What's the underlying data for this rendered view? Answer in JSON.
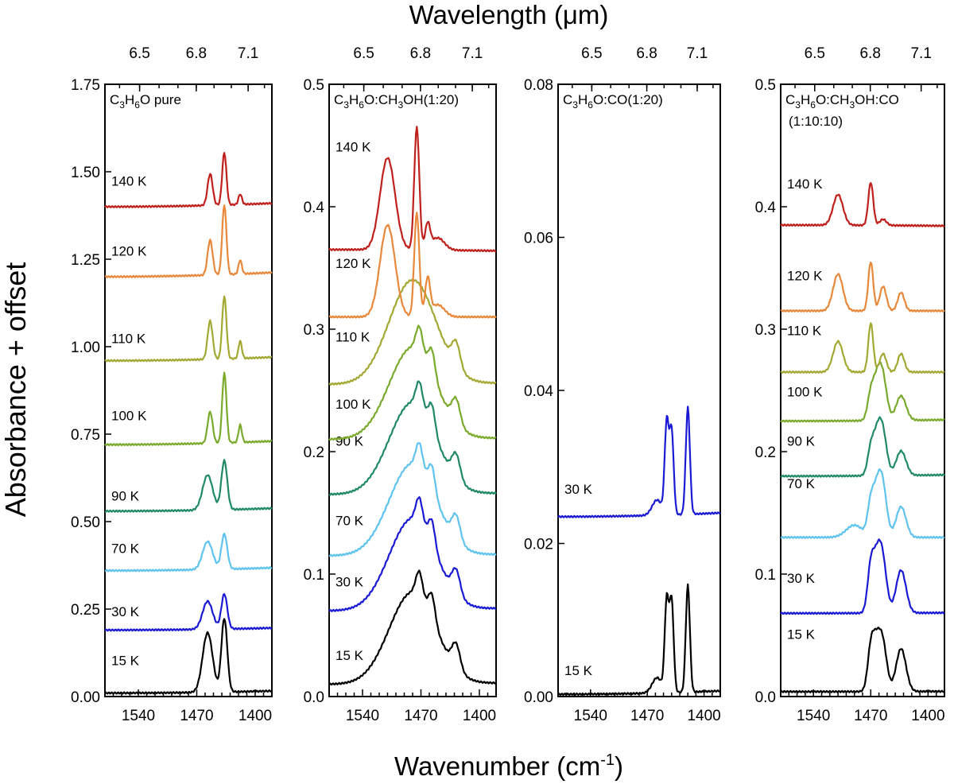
{
  "figure": {
    "top_axis_label": "Wavelength (μm)",
    "bottom_axis_label_main": "Wavenumber (cm",
    "bottom_axis_label_sup": "-1",
    "bottom_axis_label_close": ")",
    "y_axis_label": "Absorbance + offset",
    "top_ticks": [
      "6.5",
      "6.8",
      "7.1"
    ],
    "bottom_ticks": [
      "1540",
      "1470",
      "1400"
    ]
  },
  "chart_data": [
    {
      "type": "line",
      "title_main": "C",
      "t_sub1": "3",
      "t_mid": "H",
      "t_sub2": "6",
      "t_rest": "O pure",
      "t_line2": "",
      "xlabel": "Wavenumber (cm-1)",
      "ylabel": "Absorbance + offset",
      "xlim": [
        1580,
        1380
      ],
      "ylim": [
        0,
        1.75
      ],
      "yticks": [
        "0.00",
        "0.25",
        "0.50",
        "0.75",
        "1.00",
        "1.25",
        "1.50",
        "1.75"
      ],
      "ytick_values": [
        0,
        0.25,
        0.5,
        0.75,
        1.0,
        1.25,
        1.5,
        1.75
      ],
      "series": [
        {
          "name": "15 K",
          "color": "#000000",
          "baseline": 0.01,
          "label_y": 0.09,
          "end": 0.04,
          "peaks": [
            [
              1457,
              0.17,
              6
            ],
            [
              1437,
              0.21,
              3.5
            ]
          ]
        },
        {
          "name": "30 K",
          "color": "#1a1ad6",
          "baseline": 0.19,
          "label_y": 0.23,
          "end": 0.22,
          "peaks": [
            [
              1457,
              0.08,
              6
            ],
            [
              1437,
              0.1,
              3.5
            ]
          ]
        },
        {
          "name": "70 K",
          "color": "#5fc3ef",
          "baseline": 0.36,
          "label_y": 0.41,
          "end": 0.4,
          "peaks": [
            [
              1457,
              0.08,
              6
            ],
            [
              1437,
              0.1,
              3.5
            ]
          ]
        },
        {
          "name": "90 K",
          "color": "#1f8a63",
          "baseline": 0.53,
          "label_y": 0.56,
          "end": 0.57,
          "peaks": [
            [
              1457,
              0.1,
              6
            ],
            [
              1437,
              0.14,
              3.5
            ]
          ]
        },
        {
          "name": "100 K",
          "color": "#7aaa2c",
          "baseline": 0.72,
          "label_y": 0.79,
          "end": 0.77,
          "peaks": [
            [
              1454,
              0.09,
              3
            ],
            [
              1437,
              0.2,
              2.5
            ],
            [
              1418,
              0.05,
              2
            ]
          ]
        },
        {
          "name": "110 K",
          "color": "#a3a832",
          "baseline": 0.96,
          "label_y": 1.01,
          "end": 1.01,
          "peaks": [
            [
              1454,
              0.11,
              3
            ],
            [
              1437,
              0.18,
              2.5
            ],
            [
              1418,
              0.05,
              2
            ]
          ]
        },
        {
          "name": "120 K",
          "color": "#e8883a",
          "baseline": 1.2,
          "label_y": 1.26,
          "end": 1.26,
          "peaks": [
            [
              1454,
              0.1,
              3
            ],
            [
              1437,
              0.2,
              2.5
            ],
            [
              1418,
              0.04,
              2
            ]
          ]
        },
        {
          "name": "140 K",
          "color": "#c0201c",
          "baseline": 1.4,
          "label_y": 1.46,
          "end": 1.45,
          "peaks": [
            [
              1454,
              0.09,
              3
            ],
            [
              1437,
              0.15,
              2.5
            ],
            [
              1418,
              0.03,
              2
            ]
          ]
        }
      ]
    },
    {
      "type": "line",
      "title_main": "C",
      "t_sub1": "3",
      "t_mid": "H",
      "t_sub2": "6",
      "t_rest": "O:CH",
      "t_sub3": "3",
      "t_rest2": "OH(1:20)",
      "t_line2": "",
      "xlabel": "Wavenumber (cm-1)",
      "ylabel": "Absorbance + offset",
      "xlim": [
        1580,
        1380
      ],
      "ylim": [
        0,
        0.5
      ],
      "yticks": [
        "0.0",
        "0.1",
        "0.2",
        "0.3",
        "0.4",
        "0.5"
      ],
      "ytick_values": [
        0,
        0.1,
        0.2,
        0.3,
        0.4,
        0.5
      ],
      "series": [
        {
          "name": "15 K",
          "color": "#000000",
          "baseline": 0.01,
          "label_y": 0.03,
          "end": 0.015,
          "peaks": [
            [
              1480,
              0.075,
              28
            ],
            [
              1472,
              0.02,
              4
            ],
            [
              1457,
              0.02,
              4
            ],
            [
              1428,
              0.02,
              5
            ]
          ]
        },
        {
          "name": "30 K",
          "color": "#1a1ad6",
          "baseline": 0.07,
          "label_y": 0.09,
          "end": 0.08,
          "peaks": [
            [
              1480,
              0.075,
              28
            ],
            [
              1472,
              0.02,
              4
            ],
            [
              1457,
              0.02,
              4
            ],
            [
              1428,
              0.02,
              5
            ]
          ]
        },
        {
          "name": "70 K",
          "color": "#5fc3ef",
          "baseline": 0.115,
          "label_y": 0.14,
          "end": 0.12,
          "peaks": [
            [
              1480,
              0.075,
              28
            ],
            [
              1472,
              0.02,
              4
            ],
            [
              1457,
              0.02,
              4
            ],
            [
              1428,
              0.02,
              5
            ]
          ]
        },
        {
          "name": "90 K",
          "color": "#1f8a63",
          "baseline": 0.165,
          "label_y": 0.205,
          "end": 0.17,
          "peaks": [
            [
              1480,
              0.075,
              28
            ],
            [
              1472,
              0.02,
              4
            ],
            [
              1457,
              0.02,
              4
            ],
            [
              1428,
              0.02,
              5
            ]
          ]
        },
        {
          "name": "100 K",
          "color": "#7aaa2c",
          "baseline": 0.21,
          "label_y": 0.235,
          "end": 0.215,
          "peaks": [
            [
              1480,
              0.075,
              28
            ],
            [
              1472,
              0.02,
              4
            ],
            [
              1457,
              0.02,
              4
            ],
            [
              1428,
              0.02,
              5
            ]
          ]
        },
        {
          "name": "110 K",
          "color": "#a3a832",
          "baseline": 0.255,
          "label_y": 0.29,
          "end": 0.26,
          "peaks": [
            [
              1480,
              0.085,
              28
            ],
            [
              1428,
              0.02,
              5
            ]
          ]
        },
        {
          "name": "120 K",
          "color": "#e8883a",
          "baseline": 0.31,
          "label_y": 0.35,
          "end": 0.31,
          "peaks": [
            [
              1510,
              0.075,
              9
            ],
            [
              1475,
              0.085,
              3
            ],
            [
              1462,
              0.03,
              3
            ],
            [
              1450,
              0.01,
              8
            ]
          ]
        },
        {
          "name": "140 K",
          "color": "#c0201c",
          "baseline": 0.365,
          "label_y": 0.445,
          "end": 0.36,
          "peaks": [
            [
              1510,
              0.075,
              9
            ],
            [
              1475,
              0.1,
              3
            ],
            [
              1462,
              0.02,
              3
            ],
            [
              1450,
              0.01,
              8
            ]
          ]
        }
      ]
    },
    {
      "type": "line",
      "title_main": "C",
      "t_sub1": "3",
      "t_mid": "H",
      "t_sub2": "6",
      "t_rest": "O:CO(1:20)",
      "t_line2": "",
      "xlabel": "Wavenumber (cm-1)",
      "ylabel": "Absorbance + offset",
      "xlim": [
        1580,
        1380
      ],
      "ylim": [
        0,
        0.08
      ],
      "yticks": [
        "0.00",
        "0.02",
        "0.04",
        "0.06",
        "0.08"
      ],
      "ytick_values": [
        0,
        0.02,
        0.04,
        0.06,
        0.08
      ],
      "series": [
        {
          "name": "15 K",
          "color": "#000000",
          "baseline": 0.0003,
          "label_y": 0.0028,
          "end": 0.0025,
          "peaks": [
            [
              1446,
              0.012,
              2.5
            ],
            [
              1440,
              0.012,
              2.5
            ],
            [
              1420,
              0.014,
              2.5
            ],
            [
              1458,
              0.002,
              6
            ]
          ]
        },
        {
          "name": "30 K",
          "color": "#1a1ad6",
          "baseline": 0.0235,
          "label_y": 0.0265,
          "end": 0.026,
          "peaks": [
            [
              1446,
              0.012,
              2.5
            ],
            [
              1440,
              0.011,
              2.5
            ],
            [
              1420,
              0.014,
              2.5
            ],
            [
              1458,
              0.002,
              6
            ]
          ]
        }
      ]
    },
    {
      "type": "line",
      "title_main": "C",
      "t_sub1": "3",
      "t_mid": "H",
      "t_sub2": "6",
      "t_rest": "O:CH",
      "t_sub3": "3",
      "t_rest2": "OH:CO",
      "t_line2": "(1:10:10)",
      "xlabel": "Wavenumber (cm-1)",
      "ylabel": "Absorbance + offset",
      "xlim": [
        1580,
        1380
      ],
      "ylim": [
        0,
        0.5
      ],
      "yticks": [
        "0.0",
        "0.1",
        "0.2",
        "0.3",
        "0.4",
        "0.5"
      ],
      "ytick_values": [
        0,
        0.1,
        0.2,
        0.3,
        0.4,
        0.5
      ],
      "series": [
        {
          "name": "15 K",
          "color": "#000000",
          "baseline": 0.004,
          "label_y": 0.047,
          "end": 0.005,
          "peaks": [
            [
              1470,
              0.03,
              4
            ],
            [
              1463,
              0.035,
              5
            ],
            [
              1455,
              0.035,
              5
            ],
            [
              1433,
              0.035,
              6
            ]
          ]
        },
        {
          "name": "30 K",
          "color": "#1a1ad6",
          "baseline": 0.068,
          "label_y": 0.093,
          "end": 0.07,
          "peaks": [
            [
              1470,
              0.035,
              4
            ],
            [
              1462,
              0.04,
              5
            ],
            [
              1455,
              0.035,
              5
            ],
            [
              1433,
              0.035,
              6
            ]
          ]
        },
        {
          "name": "70 K",
          "color": "#5fc3ef",
          "baseline": 0.13,
          "label_y": 0.17,
          "end": 0.13,
          "peaks": [
            [
              1490,
              0.01,
              10
            ],
            [
              1470,
              0.025,
              4
            ],
            [
              1462,
              0.035,
              5
            ],
            [
              1455,
              0.035,
              5
            ],
            [
              1433,
              0.025,
              6
            ]
          ]
        },
        {
          "name": "90 K",
          "color": "#1f8a63",
          "baseline": 0.18,
          "label_y": 0.205,
          "end": 0.185,
          "peaks": [
            [
              1470,
              0.02,
              4
            ],
            [
              1462,
              0.03,
              5
            ],
            [
              1455,
              0.03,
              5
            ],
            [
              1433,
              0.02,
              6
            ]
          ]
        },
        {
          "name": "100 K",
          "color": "#7aaa2c",
          "baseline": 0.225,
          "label_y": 0.245,
          "end": 0.23,
          "peaks": [
            [
              1470,
              0.02,
              4
            ],
            [
              1462,
              0.03,
              5
            ],
            [
              1455,
              0.03,
              5
            ],
            [
              1433,
              0.02,
              6
            ]
          ]
        },
        {
          "name": "110 K",
          "color": "#a3a832",
          "baseline": 0.265,
          "label_y": 0.295,
          "end": 0.265,
          "peaks": [
            [
              1510,
              0.025,
              6
            ],
            [
              1470,
              0.04,
              3
            ],
            [
              1455,
              0.015,
              4
            ],
            [
              1433,
              0.015,
              4
            ]
          ]
        },
        {
          "name": "120 K",
          "color": "#e8883a",
          "baseline": 0.315,
          "label_y": 0.34,
          "end": 0.315,
          "peaks": [
            [
              1510,
              0.03,
              6
            ],
            [
              1470,
              0.04,
              3
            ],
            [
              1455,
              0.02,
              4
            ],
            [
              1433,
              0.015,
              4
            ]
          ]
        },
        {
          "name": "140 K",
          "color": "#c0201c",
          "baseline": 0.385,
          "label_y": 0.415,
          "end": 0.382,
          "peaks": [
            [
              1510,
              0.025,
              6
            ],
            [
              1470,
              0.035,
              3
            ],
            [
              1455,
              0.005,
              4
            ]
          ]
        }
      ]
    }
  ]
}
